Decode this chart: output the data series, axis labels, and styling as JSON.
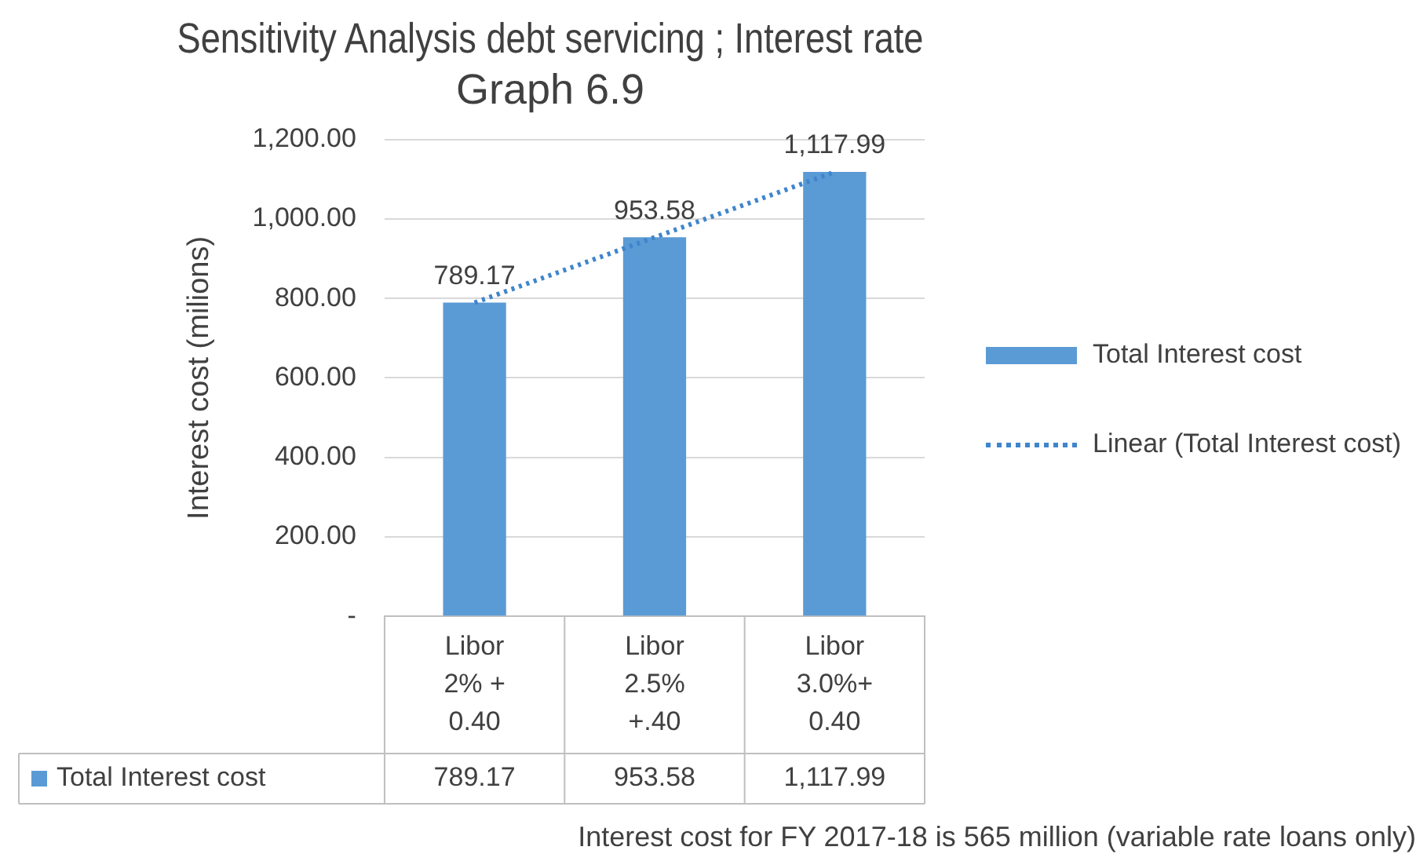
{
  "chart_data": {
    "type": "bar",
    "title": "Sensitivity Analysis debt servicing ; Interest rate\nGraph 6.9",
    "ylabel": "Interest cost (milions)",
    "categories": [
      "Libor\n2% +\n0.40",
      "Libor\n2.5%\n+.40",
      "Libor\n3.0%+\n0.40"
    ],
    "series": [
      {
        "name": "Total Interest cost",
        "color": "#5b9bd5",
        "values": [
          789.17,
          953.58,
          1117.99
        ],
        "value_labels": [
          "789.17",
          "953.58",
          "1,117.99"
        ]
      },
      {
        "name": "Linear (Total Interest cost)",
        "type": "line",
        "color": "#3f85cc",
        "line_style": "dotted",
        "marker": "none",
        "values": [
          789.17,
          953.58,
          1117.99
        ]
      }
    ],
    "ylim": [
      0,
      1200
    ],
    "yticks": [
      {
        "value": 0,
        "label": "-"
      },
      {
        "value": 200,
        "label": "200.00"
      },
      {
        "value": 400,
        "label": "400.00"
      },
      {
        "value": 600,
        "label": "600.00"
      },
      {
        "value": 800,
        "label": "800.00"
      },
      {
        "value": 1000,
        "label": "1,000.00"
      },
      {
        "value": 1200,
        "label": "1,200.00"
      }
    ],
    "grid": "y",
    "legend": "right",
    "annotations": [
      "Interest cost for FY 2017-18 is 565 million (variable rate loans only)"
    ]
  }
}
